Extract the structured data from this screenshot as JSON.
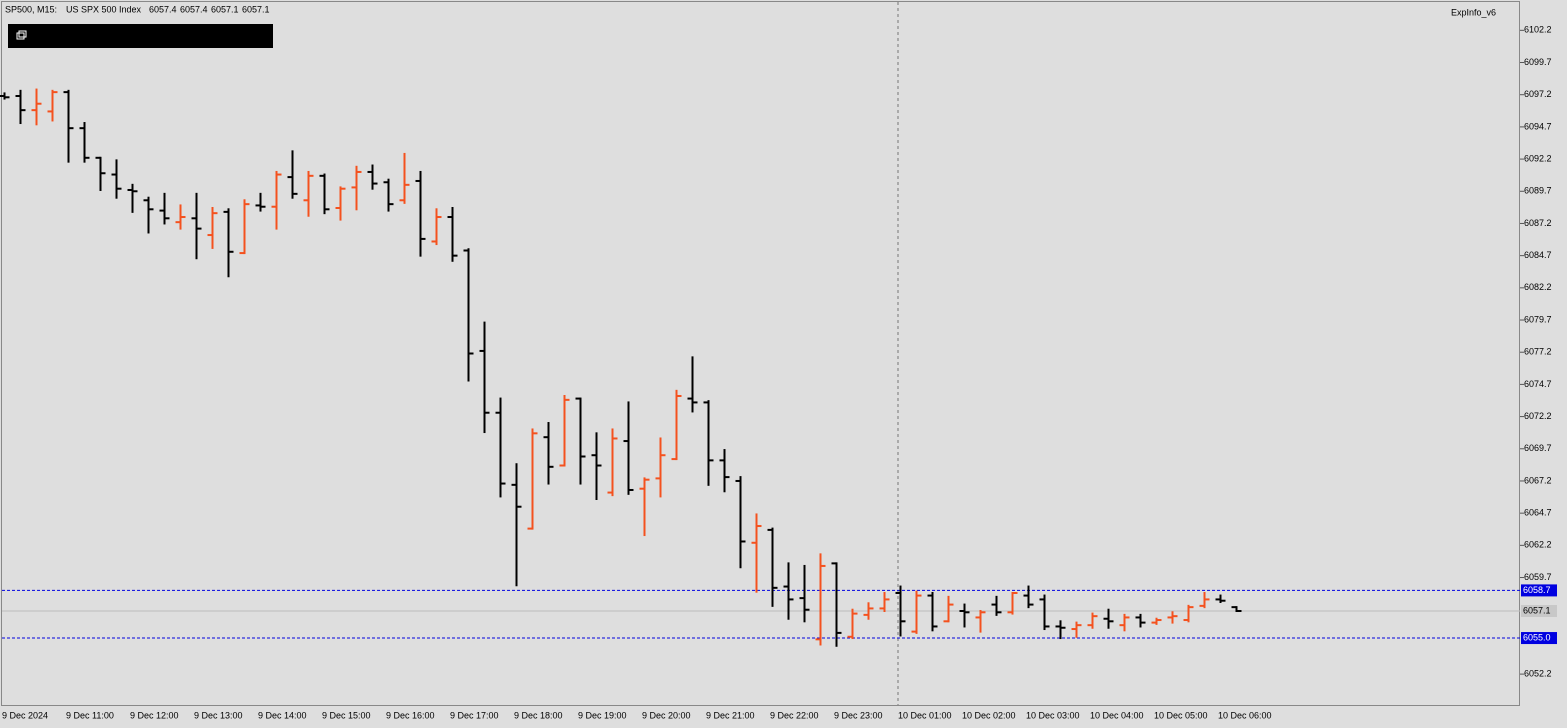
{
  "chart_data": {
    "type": "ohlc",
    "symbol": "SP500, M15:",
    "description": "US SPX 500 Index",
    "indicator": "ExpInfo_v6",
    "categories": [
      "9 Dec 2024",
      null,
      null,
      null,
      "9 Dec 11:00",
      null,
      null,
      null,
      "9 Dec 12:00",
      null,
      null,
      null,
      "9 Dec 13:00",
      null,
      null,
      null,
      "9 Dec 14:00",
      null,
      null,
      null,
      "9 Dec 15:00",
      null,
      null,
      null,
      "9 Dec 16:00",
      null,
      null,
      null,
      "9 Dec 17:00",
      null,
      null,
      null,
      "9 Dec 18:00",
      null,
      null,
      null,
      "9 Dec 19:00",
      null,
      null,
      null,
      "9 Dec 20:00",
      null,
      null,
      null,
      "9 Dec 21:00",
      null,
      null,
      null,
      "9 Dec 22:00",
      null,
      null,
      null,
      "9 Dec 23:00",
      null,
      null,
      null,
      "10 Dec 01:00",
      null,
      null,
      null,
      "10 Dec 02:00",
      null,
      null,
      null,
      "10 Dec 03:00",
      null,
      null,
      null,
      "10 Dec 04:00",
      null,
      null,
      null,
      "10 Dec 05:00",
      null,
      null,
      null,
      "10 Dec 06:00",
      null
    ],
    "open": [
      6097.1,
      6097.1,
      6096.0,
      6095.9,
      6097.4,
      6094.6,
      6092.3,
      6091.0,
      6089.8,
      6089.0,
      6088.2,
      6087.3,
      6087.6,
      6086.3,
      6088.1,
      6084.9,
      6088.6,
      6088.5,
      6090.8,
      6089.0,
      6090.9,
      6088.4,
      6090.0,
      6091.2,
      6090.4,
      6089.0,
      6090.5,
      6085.8,
      6087.7,
      6085.1,
      6077.3,
      6072.5,
      6066.9,
      6063.5,
      6070.6,
      6068.4,
      6073.6,
      6069.2,
      6066.3,
      6070.3,
      6066.6,
      6067.4,
      6068.9,
      6073.6,
      6073.3,
      6068.8,
      6067.2,
      6062.4,
      6063.4,
      6059.0,
      6058.1,
      6054.9,
      6060.8,
      6055.1,
      6056.8,
      6057.3,
      6058.5,
      6055.5,
      6058.3,
      6056.3,
      6057.1,
      6056.6,
      6057.6,
      6057.0,
      6058.3,
      6058.0,
      6055.9,
      6055.7,
      6056.0,
      6056.5,
      6056.0,
      6056.6,
      6056.2,
      6056.6,
      6056.4,
      6057.5,
      6058.0,
      6057.4
    ],
    "high": [
      6097.3,
      6097.5,
      6097.6,
      6097.5,
      6097.5,
      6095.0,
      6092.3,
      6092.1,
      6090.2,
      6089.2,
      6089.5,
      6088.6,
      6089.5,
      6088.4,
      6088.3,
      6089.0,
      6089.5,
      6091.2,
      6092.8,
      6091.2,
      6091.0,
      6090.0,
      6091.6,
      6091.7,
      6090.6,
      6092.6,
      6091.2,
      6088.3,
      6088.4,
      6085.2,
      6079.5,
      6073.6,
      6068.5,
      6071.2,
      6071.7,
      6073.8,
      6073.6,
      6070.9,
      6071.2,
      6073.3,
      6067.4,
      6070.5,
      6074.2,
      6076.8,
      6073.4,
      6069.6,
      6067.5,
      6064.6,
      6063.5,
      6060.8,
      6060.6,
      6061.5,
      6060.8,
      6057.2,
      6057.7,
      6058.5,
      6059.0,
      6058.6,
      6058.5,
      6058.2,
      6057.6,
      6057.1,
      6058.2,
      6058.5,
      6059.0,
      6058.3,
      6056.3,
      6056.2,
      6056.9,
      6057.2,
      6056.8,
      6056.8,
      6056.5,
      6057.0,
      6057.5,
      6058.5,
      6058.3,
      6057.4
    ],
    "low": [
      6096.9,
      6095.0,
      6094.9,
      6095.2,
      6092.0,
      6092.0,
      6089.8,
      6089.2,
      6088.1,
      6086.5,
      6087.2,
      6086.8,
      6084.5,
      6085.3,
      6083.1,
      6084.9,
      6088.2,
      6086.8,
      6089.2,
      6087.8,
      6088.0,
      6087.5,
      6088.3,
      6089.9,
      6088.2,
      6088.8,
      6084.7,
      6085.6,
      6084.3,
      6075.0,
      6071.0,
      6066.0,
      6059.1,
      6063.5,
      6067.0,
      6068.4,
      6067.0,
      6065.8,
      6066.1,
      6066.2,
      6063.0,
      6066.0,
      6068.9,
      6072.6,
      6066.9,
      6066.4,
      6060.5,
      6058.6,
      6057.5,
      6056.5,
      6056.3,
      6054.5,
      6054.4,
      6055.0,
      6056.5,
      6057.1,
      6055.2,
      6055.4,
      6055.6,
      6056.3,
      6055.9,
      6055.5,
      6056.8,
      6056.9,
      6057.4,
      6055.7,
      6055.0,
      6055.1,
      6055.8,
      6055.8,
      6055.6,
      6055.9,
      6056.1,
      6056.2,
      6056.3,
      6057.4,
      6057.8,
      6057.1
    ],
    "close": [
      6097.0,
      6096.0,
      6096.5,
      6097.4,
      6094.6,
      6092.3,
      6091.1,
      6089.9,
      6089.7,
      6088.3,
      6087.6,
      6087.7,
      6086.8,
      6088.0,
      6085.0,
      6088.7,
      6088.5,
      6091.0,
      6089.5,
      6090.9,
      6088.3,
      6089.9,
      6091.2,
      6090.3,
      6088.7,
      6090.2,
      6086.0,
      6087.7,
      6084.7,
      6077.1,
      6072.5,
      6067.0,
      6065.2,
      6070.9,
      6068.3,
      6073.5,
      6069.1,
      6068.4,
      6070.5,
      6066.5,
      6067.3,
      6069.2,
      6073.8,
      6073.3,
      6068.8,
      6067.5,
      6062.5,
      6063.7,
      6058.9,
      6058.0,
      6057.2,
      6060.6,
      6055.4,
      6056.9,
      6057.3,
      6058.0,
      6056.3,
      6058.3,
      6055.9,
      6057.6,
      6057.0,
      6057.0,
      6057.0,
      6058.5,
      6057.6,
      6055.9,
      6055.8,
      6056.0,
      6056.7,
      6056.3,
      6056.6,
      6056.2,
      6056.4,
      6056.7,
      6057.4,
      6058.0,
      6057.9,
      6057.1
    ],
    "up_color": "#f4511e",
    "down_color": "#000000",
    "ylim": [
      6049.8,
      6104.4
    ],
    "yticks": [
      6102.2,
      6099.7,
      6097.2,
      6094.7,
      6092.2,
      6089.7,
      6087.2,
      6084.7,
      6082.2,
      6079.7,
      6077.2,
      6074.7,
      6072.2,
      6069.7,
      6067.2,
      6064.7,
      6062.2,
      6059.7,
      6052.2
    ],
    "hlines": [
      6058.7,
      {
        "value": 6055,
        "label": "6055.0"
      }
    ],
    "hline_color": "#0000e0",
    "current_price": 6057.1
  }
}
